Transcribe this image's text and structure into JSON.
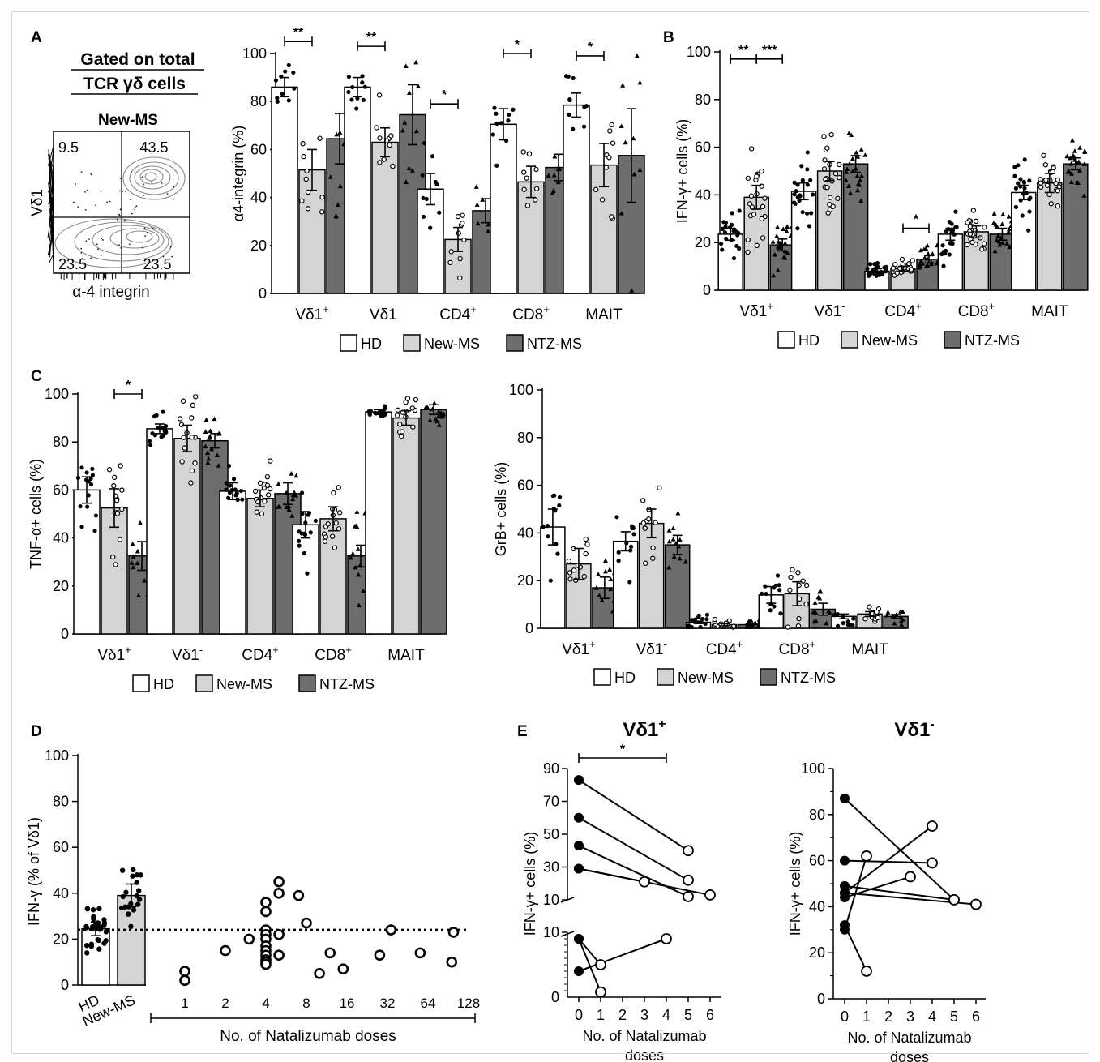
{
  "colors": {
    "hd": "#ffffff",
    "new_ms": "#d4d4d4",
    "ntz_ms": "#6d6d6d",
    "ink": "#000000",
    "frame": "#cfd2d6"
  },
  "legend": {
    "items": [
      "HD",
      "New-MS",
      "NTZ-MS"
    ]
  },
  "groups": [
    "Vδ1",
    "Vδ1",
    "CD4",
    "CD8",
    "MAIT"
  ],
  "group_sups": [
    "+",
    "-",
    "+",
    "+",
    ""
  ],
  "panels": {
    "A": {
      "label": "A",
      "flow": {
        "title_line1": "Gated on total",
        "title_line2": "TCR γδ cells",
        "subtitle": "New-MS",
        "xlabel": "α-4 integrin",
        "ylabel": "Vδ1",
        "q_ul": "9.5",
        "q_ur": "43.5",
        "q_ll": "23.5",
        "q_lr": "23.5"
      }
    },
    "B": {
      "label": "B"
    },
    "C": {
      "label": "C"
    },
    "D": {
      "label": "D"
    },
    "E": {
      "label": "E"
    }
  },
  "chart_data": [
    {
      "id": "A-bar",
      "type": "bar",
      "ylabel": "α4-integrin (%)",
      "ylim": [
        0,
        100
      ],
      "yticks": [
        0,
        20,
        40,
        60,
        80,
        100
      ],
      "categories": [
        "Vδ1+",
        "Vδ1-",
        "CD4+",
        "CD8+",
        "MAIT"
      ],
      "series": [
        {
          "name": "HD",
          "values": [
            86,
            86,
            43.5,
            70.5,
            78.5
          ],
          "sem": [
            4,
            4,
            6.5,
            6.5,
            5
          ]
        },
        {
          "name": "New-MS",
          "values": [
            51.5,
            63,
            22.5,
            46.5,
            53.5
          ],
          "sem": [
            8.5,
            6,
            5,
            6.5,
            9
          ]
        },
        {
          "name": "NTZ-MS",
          "values": [
            64.5,
            74.5,
            34.5,
            52.5,
            57.5
          ],
          "sem": [
            10.5,
            12.5,
            5,
            5.5,
            19.5
          ]
        }
      ],
      "significance": [
        {
          "group": 0,
          "from": 0,
          "to": 1,
          "label": "**",
          "y": 105
        },
        {
          "group": 1,
          "from": 0,
          "to": 1,
          "label": "**",
          "y": 103
        },
        {
          "group": 2,
          "from": 0,
          "to": 1,
          "label": "*",
          "y": 79
        },
        {
          "group": 3,
          "from": 0,
          "to": 1,
          "label": "*",
          "y": 100
        },
        {
          "group": 4,
          "from": 0,
          "to": 1,
          "label": "*",
          "y": 99
        }
      ]
    },
    {
      "id": "B-bar",
      "type": "bar",
      "ylabel": "IFN-γ+ cells (%)",
      "ylim": [
        0,
        100
      ],
      "yticks": [
        0,
        20,
        40,
        60,
        80,
        100
      ],
      "categories": [
        "Vδ1+",
        "Vδ1-",
        "CD4+",
        "CD8+",
        "MAIT"
      ],
      "series": [
        {
          "name": "HD",
          "values": [
            23.5,
            41.5,
            8,
            23.5,
            41
          ],
          "sem": [
            2.5,
            3.5,
            1,
            2.5,
            3
          ]
        },
        {
          "name": "New-MS",
          "values": [
            39,
            50,
            9,
            24.5,
            45
          ],
          "sem": [
            5,
            4,
            1,
            2.5,
            4
          ]
        },
        {
          "name": "NTZ-MS",
          "values": [
            19,
            53,
            13,
            23.5,
            53
          ],
          "sem": [
            2.5,
            3.5,
            1.5,
            2.5,
            2.5
          ]
        }
      ],
      "significance": [
        {
          "group": 0,
          "from": 0,
          "to": 1,
          "label": "**",
          "y": 97
        },
        {
          "group": 0,
          "from": 1,
          "to": 2,
          "label": "***",
          "y": 97
        },
        {
          "group": 2,
          "from": 1,
          "to": 2,
          "label": "*",
          "y": 26
        }
      ]
    },
    {
      "id": "C-tnf",
      "type": "bar",
      "ylabel": "TNF-α+ cells (%)",
      "ylim": [
        0,
        100
      ],
      "yticks": [
        0,
        20,
        40,
        60,
        80,
        100
      ],
      "categories": [
        "Vδ1+",
        "Vδ1-",
        "CD4+",
        "CD8+",
        "MAIT"
      ],
      "series": [
        {
          "name": "HD",
          "values": [
            60,
            85.5,
            59.5,
            45.5,
            92.5
          ],
          "sem": [
            5.5,
            2,
            3.5,
            5.5,
            1
          ]
        },
        {
          "name": "New-MS",
          "values": [
            52.5,
            81.5,
            56.5,
            48,
            90
          ],
          "sem": [
            8,
            5.5,
            3.5,
            5,
            3
          ]
        },
        {
          "name": "NTZ-MS",
          "values": [
            32.5,
            80.5,
            58.5,
            32.5,
            93.5
          ],
          "sem": [
            6,
            3,
            4.5,
            4.5,
            2
          ]
        }
      ],
      "significance": [
        {
          "group": 0,
          "from": 1,
          "to": 2,
          "label": "*",
          "y": 100
        }
      ]
    },
    {
      "id": "C-grb",
      "type": "bar",
      "ylabel": "GrB+ cells (%)",
      "ylim": [
        0,
        100
      ],
      "yticks": [
        0,
        20,
        40,
        60,
        80,
        100
      ],
      "categories": [
        "Vδ1+",
        "Vδ1-",
        "CD4+",
        "CD8+",
        "MAIT"
      ],
      "series": [
        {
          "name": "HD",
          "values": [
            42.5,
            36.5,
            2.5,
            14,
            5
          ],
          "sem": [
            7.5,
            4,
            0.5,
            3.5,
            1
          ]
        },
        {
          "name": "New-MS",
          "values": [
            27,
            44,
            1.5,
            14.5,
            6
          ],
          "sem": [
            6.5,
            6,
            0.5,
            5,
            1
          ]
        },
        {
          "name": "NTZ-MS",
          "values": [
            17,
            35,
            1.5,
            8,
            5
          ],
          "sem": [
            4.5,
            4,
            0.5,
            2.5,
            0.8
          ]
        }
      ]
    },
    {
      "id": "D",
      "type": "scatter",
      "ylabel": "IFN-γ (% of Vδ1)",
      "ylim": [
        0,
        100
      ],
      "yticks": [
        0,
        20,
        40,
        60,
        80,
        100
      ],
      "xlabel": "No. of Natalizumab doses",
      "x_scale": "log2",
      "xticks": [
        1,
        2,
        4,
        8,
        16,
        32,
        64,
        128
      ],
      "bar_categories": [
        "HD",
        "New-MS"
      ],
      "bar_values": [
        24.5,
        39
      ],
      "bar_sem": [
        3,
        5
      ],
      "reference_line": 24,
      "points": [
        [
          1,
          6
        ],
        [
          1,
          2
        ],
        [
          2,
          15
        ],
        [
          3,
          20
        ],
        [
          4,
          36
        ],
        [
          4,
          32
        ],
        [
          4,
          24
        ],
        [
          4,
          22
        ],
        [
          4,
          20
        ],
        [
          4,
          17
        ],
        [
          4,
          15
        ],
        [
          4,
          13
        ],
        [
          4,
          11
        ],
        [
          4,
          10
        ],
        [
          4,
          9
        ],
        [
          5,
          45
        ],
        [
          5,
          40
        ],
        [
          5,
          22
        ],
        [
          5,
          13
        ],
        [
          7,
          39
        ],
        [
          8,
          27
        ],
        [
          10,
          5
        ],
        [
          12,
          14
        ],
        [
          15,
          7
        ],
        [
          28,
          13
        ],
        [
          34,
          24
        ],
        [
          56,
          14
        ],
        [
          99,
          23
        ],
        [
          96,
          10
        ]
      ]
    },
    {
      "id": "E-vd1pos",
      "type": "line",
      "title": "Vδ1+",
      "ylabel": "IFN-γ+ cells (%)",
      "xlabel_line1": "No. of Natalizumab",
      "xlabel_line2": "doses",
      "xticks": [
        0,
        1,
        2,
        3,
        4,
        5,
        6
      ],
      "broken_axis": {
        "upper": [
          10,
          90
        ],
        "upper_ticks": [
          10,
          30,
          50,
          70,
          90
        ],
        "lower": [
          0,
          10
        ],
        "lower_ticks": [
          10
        ]
      },
      "pairs": [
        [
          [
            0,
            83
          ],
          [
            5,
            40
          ]
        ],
        [
          [
            0,
            60
          ],
          [
            5,
            22
          ]
        ],
        [
          [
            0,
            43
          ],
          [
            5,
            12
          ]
        ],
        [
          [
            0,
            29
          ],
          [
            3,
            21
          ]
        ],
        [
          [
            0,
            29
          ],
          [
            6,
            13
          ]
        ],
        [
          [
            0,
            9
          ],
          [
            1,
            5
          ]
        ],
        [
          [
            0,
            4
          ],
          [
            4,
            9
          ]
        ],
        [
          [
            0,
            9
          ],
          [
            1,
            0.8
          ]
        ]
      ],
      "significance": {
        "from": 0,
        "to": 4,
        "label": "*"
      }
    },
    {
      "id": "E-vd1neg",
      "type": "line",
      "title": "Vδ1-",
      "ylabel": "IFN-γ+ cells (%)",
      "xlabel_line1": "No. of Natalizumab",
      "xlabel_line2": "doses",
      "ylim": [
        0,
        100
      ],
      "yticks": [
        0,
        20,
        40,
        60,
        80,
        100
      ],
      "xticks": [
        0,
        1,
        2,
        3,
        4,
        5,
        6
      ],
      "pairs": [
        [
          [
            0,
            87
          ],
          [
            5,
            43
          ]
        ],
        [
          [
            0,
            60
          ],
          [
            4,
            59
          ]
        ],
        [
          [
            0,
            49
          ],
          [
            5,
            43
          ]
        ],
        [
          [
            0,
            46
          ],
          [
            4,
            75
          ]
        ],
        [
          [
            0,
            44
          ],
          [
            3,
            53
          ]
        ],
        [
          [
            0,
            32
          ],
          [
            1,
            12
          ]
        ],
        [
          [
            0,
            30
          ],
          [
            1,
            62
          ]
        ],
        [
          [
            0,
            46
          ],
          [
            6,
            41
          ]
        ]
      ]
    }
  ]
}
